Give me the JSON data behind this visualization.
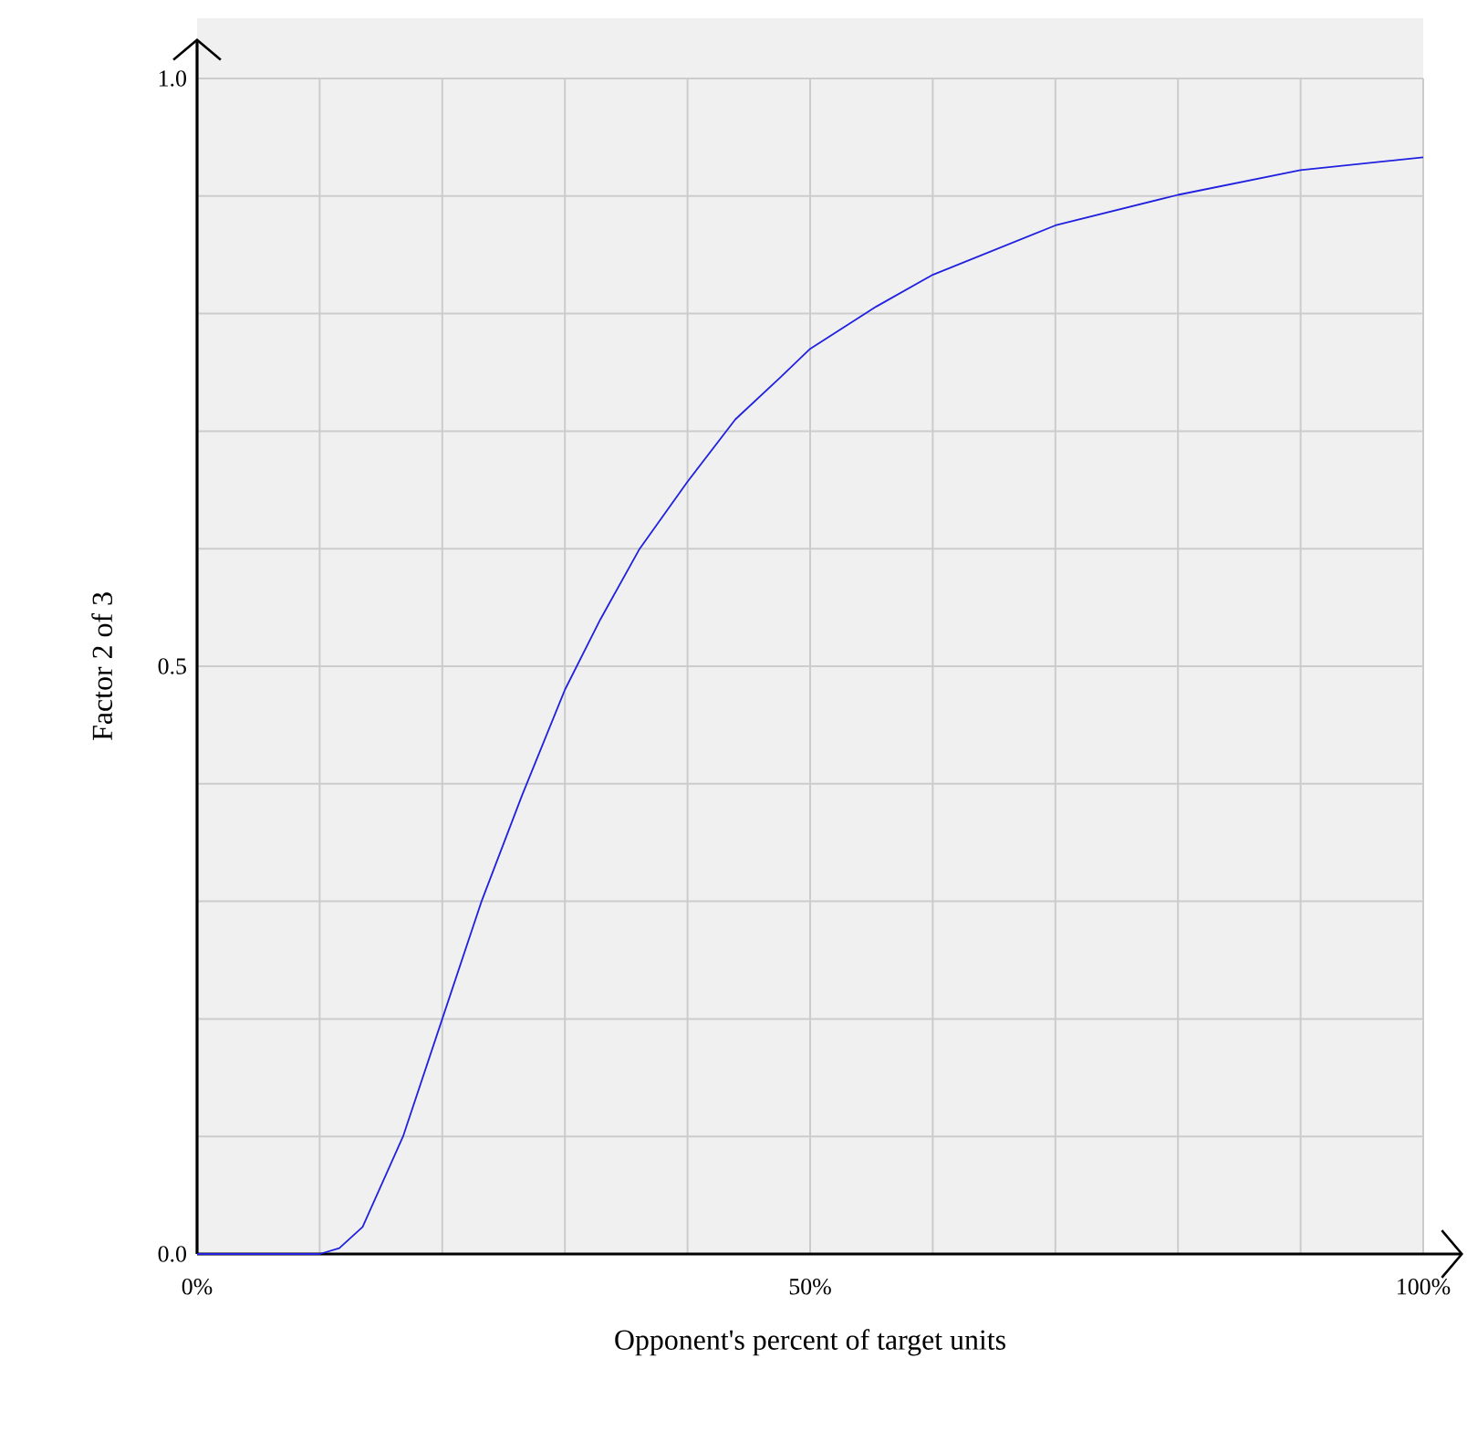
{
  "chart_data": {
    "type": "line",
    "xlabel": "Opponent's percent of target units",
    "ylabel": "Factor 2 of 3",
    "series": [
      {
        "color": "#2020e0",
        "x": [
          0,
          5,
          10,
          11.6,
          13.5,
          16.8,
          20,
          23.2,
          26.5,
          30,
          32.9,
          36.1,
          40,
          43.9,
          47.6,
          50,
          55.4,
          60,
          70,
          80,
          90,
          100
        ],
        "values": [
          0,
          0,
          0,
          0.005,
          0.023,
          0.1,
          0.2,
          0.3,
          0.39,
          0.48,
          0.54,
          0.6,
          0.657,
          0.71,
          0.746,
          0.77,
          0.806,
          0.833,
          0.875,
          0.901,
          0.922,
          0.933
        ]
      }
    ],
    "xlim": [
      0,
      100
    ],
    "ylim": [
      0,
      1
    ],
    "xticks": [
      {
        "value": 0,
        "label": "0%"
      },
      {
        "value": 10,
        "label": null
      },
      {
        "value": 20,
        "label": null
      },
      {
        "value": 30,
        "label": null
      },
      {
        "value": 40,
        "label": null
      },
      {
        "value": 50,
        "label": "50%"
      },
      {
        "value": 60,
        "label": null
      },
      {
        "value": 70,
        "label": null
      },
      {
        "value": 80,
        "label": null
      },
      {
        "value": 90,
        "label": null
      },
      {
        "value": 100,
        "label": "100%"
      }
    ],
    "yticks": [
      {
        "value": 0,
        "label": "0.0"
      },
      {
        "value": 0.1,
        "label": null
      },
      {
        "value": 0.2,
        "label": null
      },
      {
        "value": 0.3,
        "label": null
      },
      {
        "value": 0.4,
        "label": null
      },
      {
        "value": 0.5,
        "label": "0.5"
      },
      {
        "value": 0.6,
        "label": null
      },
      {
        "value": 0.7,
        "label": null
      },
      {
        "value": 0.8,
        "label": null
      },
      {
        "value": 0.9,
        "label": null
      },
      {
        "value": 1,
        "label": "1.0"
      }
    ],
    "grid": true
  }
}
